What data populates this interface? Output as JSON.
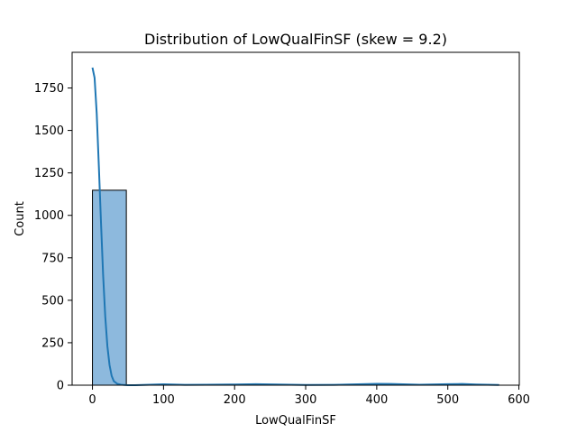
{
  "chart_data": {
    "type": "bar",
    "title": "Distribution of LowQualFinSF (skew = 9.2)",
    "xlabel": "LowQualFinSF",
    "ylabel": "Count",
    "xlim": [
      -28.6,
      600.6
    ],
    "ylim": [
      0,
      1960
    ],
    "x_ticks": [
      0,
      100,
      200,
      300,
      400,
      500,
      600
    ],
    "y_ticks": [
      0,
      250,
      500,
      750,
      1000,
      1250,
      1500,
      1750
    ],
    "x_tick_labels": [
      "0",
      "100",
      "200",
      "300",
      "400",
      "500",
      "600"
    ],
    "y_tick_labels": [
      "0",
      "250",
      "500",
      "750",
      "1000",
      "1250",
      "1500",
      "1750"
    ],
    "bins": [
      {
        "x0": 0,
        "x1": 47.67,
        "count": 1148
      },
      {
        "x0": 47.67,
        "x1": 95.33,
        "count": 0
      },
      {
        "x0": 95.33,
        "x1": 143,
        "count": 2
      },
      {
        "x0": 143,
        "x1": 190.67,
        "count": 1
      },
      {
        "x0": 190.67,
        "x1": 238.33,
        "count": 2
      },
      {
        "x0": 238.33,
        "x1": 286,
        "count": 1
      },
      {
        "x0": 286,
        "x1": 333.67,
        "count": 0
      },
      {
        "x0": 333.67,
        "x1": 381.33,
        "count": 1
      },
      {
        "x0": 381.33,
        "x1": 429,
        "count": 3
      },
      {
        "x0": 429,
        "x1": 476.67,
        "count": 0
      },
      {
        "x0": 476.67,
        "x1": 524.33,
        "count": 2
      },
      {
        "x0": 524.33,
        "x1": 572,
        "count": 1
      }
    ],
    "kde": {
      "x": [
        0,
        3,
        6,
        9,
        12,
        15,
        18,
        21,
        24,
        27,
        30,
        35,
        40,
        45,
        50,
        60,
        80,
        100,
        130,
        160,
        200,
        230,
        260,
        300,
        340,
        380,
        400,
        420,
        460,
        500,
        520,
        540,
        572
      ],
      "y": [
        1870,
        1810,
        1600,
        1290,
        960,
        650,
        405,
        230,
        120,
        55,
        24,
        8,
        3,
        1,
        0,
        0,
        3,
        5,
        2,
        3,
        4,
        6,
        4,
        1,
        2,
        6,
        8,
        7,
        3,
        6,
        7,
        4,
        1
      ]
    },
    "colors": {
      "bar_fill": "#8db9dd",
      "bar_edge": "#000000",
      "kde_line": "#1f77b4",
      "axes": "#000000"
    },
    "grid": false,
    "legend": "none"
  }
}
